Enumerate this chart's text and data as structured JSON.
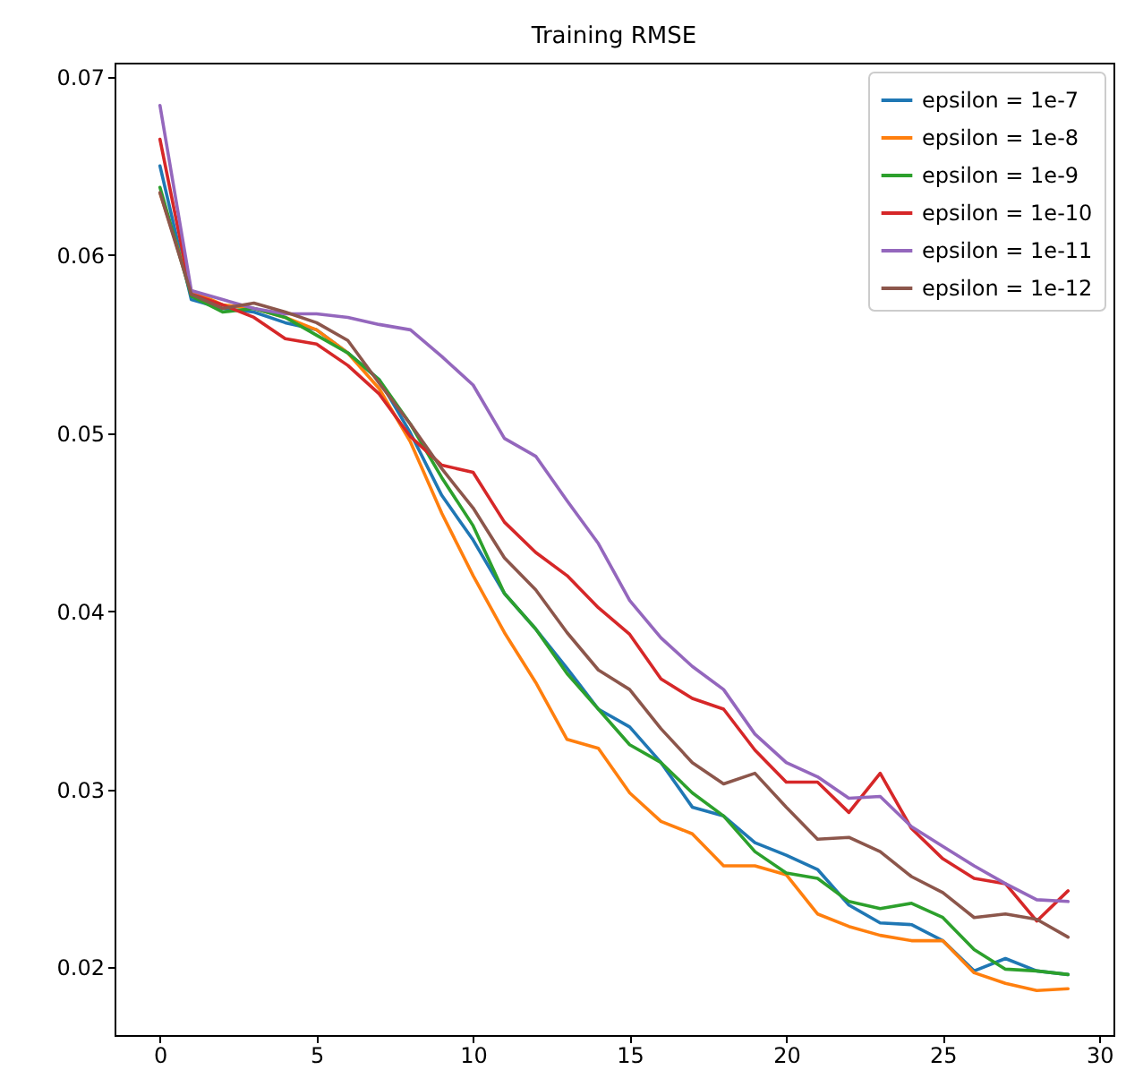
{
  "chart_data": {
    "type": "line",
    "title": "Training RMSE",
    "x": [
      0,
      1,
      2,
      3,
      4,
      5,
      6,
      7,
      8,
      9,
      10,
      11,
      12,
      13,
      14,
      15,
      16,
      17,
      18,
      19,
      20,
      21,
      22,
      23,
      24,
      25,
      26,
      27,
      28,
      29
    ],
    "series": [
      {
        "name": "epsilon = 1e-7",
        "color": "#1f77b4",
        "values": [
          0.065,
          0.0575,
          0.057,
          0.0568,
          0.0562,
          0.0558,
          0.0545,
          0.053,
          0.05,
          0.0465,
          0.044,
          0.041,
          0.039,
          0.0368,
          0.0345,
          0.0335,
          0.0315,
          0.029,
          0.0285,
          0.027,
          0.0263,
          0.0255,
          0.0235,
          0.0225,
          0.0224,
          0.0215,
          0.0198,
          0.0205,
          0.0198,
          0.0196
        ]
      },
      {
        "name": "epsilon = 1e-8",
        "color": "#ff7f0e",
        "values": [
          0.0635,
          0.058,
          0.0572,
          0.057,
          0.0565,
          0.0558,
          0.0545,
          0.0525,
          0.0495,
          0.0455,
          0.042,
          0.0388,
          0.036,
          0.0328,
          0.0323,
          0.0298,
          0.0282,
          0.0275,
          0.0257,
          0.0257,
          0.0252,
          0.023,
          0.0223,
          0.0218,
          0.0215,
          0.0215,
          0.0197,
          0.0191,
          0.0187,
          0.0188
        ]
      },
      {
        "name": "epsilon = 1e-9",
        "color": "#2ca02c",
        "values": [
          0.0638,
          0.0577,
          0.0568,
          0.057,
          0.0565,
          0.0555,
          0.0545,
          0.053,
          0.0505,
          0.0475,
          0.0448,
          0.041,
          0.039,
          0.0365,
          0.0345,
          0.0325,
          0.0315,
          0.0298,
          0.0285,
          0.0265,
          0.0253,
          0.025,
          0.0237,
          0.0233,
          0.0236,
          0.0228,
          0.021,
          0.0199,
          0.0198,
          0.0196
        ]
      },
      {
        "name": "epsilon = 1e-10",
        "color": "#d62728",
        "values": [
          0.0665,
          0.0578,
          0.0572,
          0.0565,
          0.0553,
          0.055,
          0.0538,
          0.0522,
          0.0498,
          0.0482,
          0.0478,
          0.045,
          0.0433,
          0.042,
          0.0402,
          0.0387,
          0.0362,
          0.0351,
          0.0345,
          0.0322,
          0.0304,
          0.0304,
          0.0287,
          0.0309,
          0.0278,
          0.0261,
          0.025,
          0.0247,
          0.0226,
          0.0243
        ]
      },
      {
        "name": "epsilon = 1e-11",
        "color": "#9467bd",
        "values": [
          0.0684,
          0.058,
          0.0575,
          0.057,
          0.0567,
          0.0567,
          0.0565,
          0.0561,
          0.0558,
          0.0543,
          0.0527,
          0.0497,
          0.0487,
          0.0462,
          0.0438,
          0.0406,
          0.0385,
          0.0369,
          0.0356,
          0.0331,
          0.0315,
          0.0307,
          0.0295,
          0.0296,
          0.0279,
          0.0268,
          0.0257,
          0.0247,
          0.0238,
          0.0237
        ]
      },
      {
        "name": "epsilon = 1e-12",
        "color": "#8c564b",
        "values": [
          0.0635,
          0.0578,
          0.057,
          0.0573,
          0.0568,
          0.0562,
          0.0552,
          0.0528,
          0.0505,
          0.048,
          0.0458,
          0.043,
          0.0412,
          0.0388,
          0.0367,
          0.0356,
          0.0334,
          0.0315,
          0.0303,
          0.0309,
          0.029,
          0.0272,
          0.0273,
          0.0265,
          0.0251,
          0.0242,
          0.0228,
          0.023,
          0.0227,
          0.0217
        ]
      }
    ],
    "xlim": [
      -1.45,
      30.45
    ],
    "xticks": [
      0,
      5,
      10,
      15,
      20,
      25,
      30
    ],
    "ylim": [
      0.0162,
      0.0708
    ],
    "yticks": [
      0.02,
      0.03,
      0.04,
      0.05,
      0.06,
      0.07
    ],
    "grid": false,
    "legend": "top right",
    "line_style": "solid",
    "marker": "none"
  }
}
